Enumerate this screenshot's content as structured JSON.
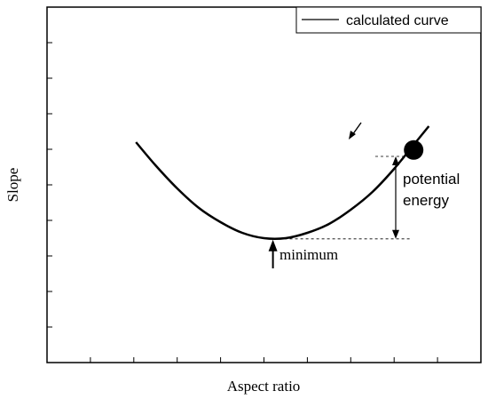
{
  "chart_data": {
    "type": "line",
    "title": "",
    "xlabel": "Aspect ratio",
    "ylabel": "Slope",
    "xlim": [
      0,
      10
    ],
    "ylim": [
      0,
      10
    ],
    "x_ticks": [
      1,
      2,
      3,
      4,
      5,
      6,
      7,
      8,
      9
    ],
    "y_ticks": [
      1,
      2,
      3,
      4,
      5,
      6,
      7,
      8,
      9,
      10
    ],
    "tick_labels_shown": false,
    "grid": false,
    "legend": {
      "position": "top-right",
      "entries": [
        "calculated curve"
      ]
    },
    "series": [
      {
        "name": "calculated curve",
        "x": [
          2.05,
          2.5,
          3.0,
          3.5,
          4.0,
          4.5,
          5.0,
          5.5,
          6.0,
          6.5,
          7.0,
          7.5,
          8.0,
          8.5,
          8.8
        ],
        "y": [
          6.2,
          5.55,
          4.9,
          4.35,
          3.95,
          3.65,
          3.5,
          3.5,
          3.65,
          3.9,
          4.3,
          4.8,
          5.45,
          6.2,
          6.65
        ]
      }
    ],
    "annotations": {
      "minimum": {
        "label": "minimum",
        "x": 5.35,
        "y": 3.48
      },
      "potential": {
        "label_line1": "potential",
        "label_line2": "energy",
        "y_top": 5.8,
        "y_bottom": 3.48
      },
      "ball": {
        "x": 8.45,
        "y": 5.98
      }
    }
  }
}
